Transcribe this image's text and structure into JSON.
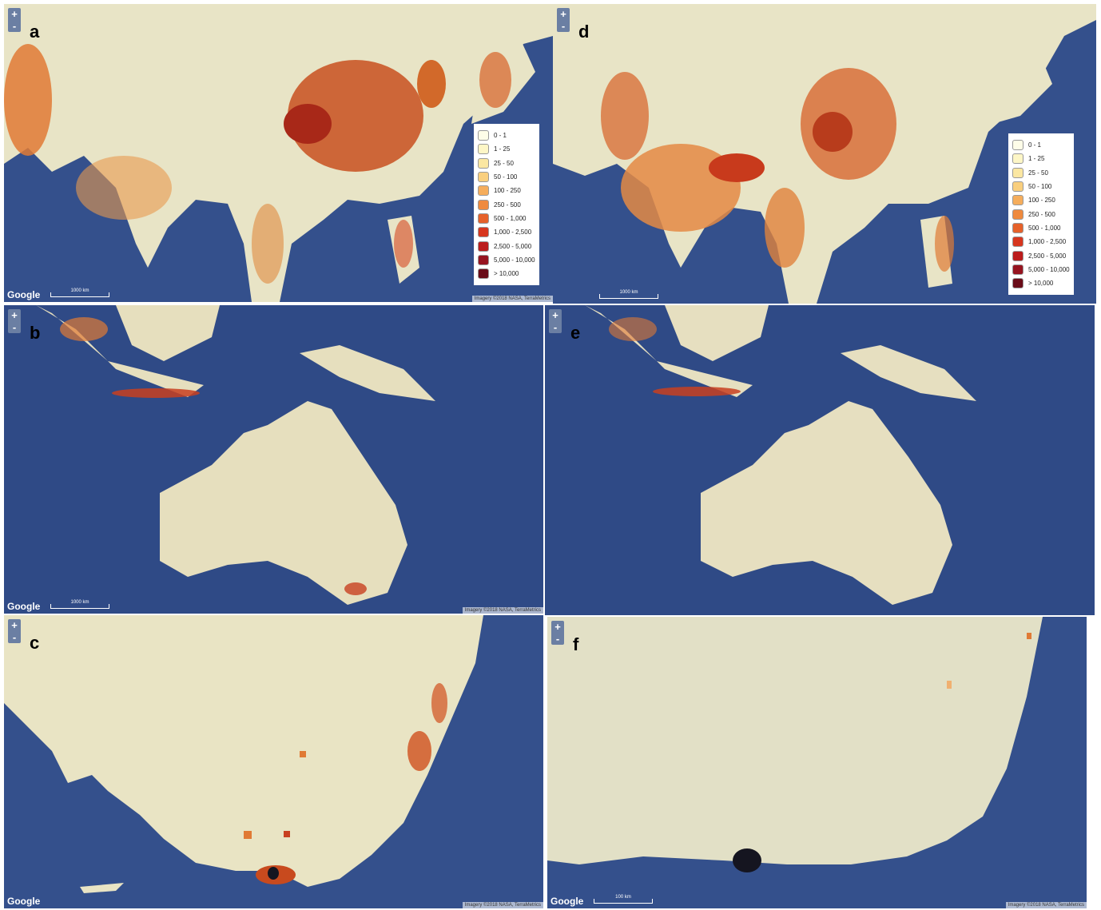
{
  "panels": [
    {
      "label": "a",
      "zoom_in": "+",
      "zoom_out": "-",
      "logo": "Google",
      "scale": "1000 km",
      "attribution": "Imagery ©2018 NASA, TerraMetrics",
      "legend": [
        {
          "label": "0 - 1",
          "color": "#fefde8"
        },
        {
          "label": "1 - 25",
          "color": "#fdf6c6"
        },
        {
          "label": "25 - 50",
          "color": "#fbe7a2"
        },
        {
          "label": "50 - 100",
          "color": "#f9cf7e"
        },
        {
          "label": "100 - 250",
          "color": "#f5ad5c"
        },
        {
          "label": "250 - 500",
          "color": "#ef8a3e"
        },
        {
          "label": "500 - 1,000",
          "color": "#e6612a"
        },
        {
          "label": "1,000 - 2,500",
          "color": "#d7361e"
        },
        {
          "label": "2,500 - 5,000",
          "color": "#bb1c1c"
        },
        {
          "label": "5,000 - 10,000",
          "color": "#961420"
        },
        {
          "label": "> 10,000",
          "color": "#6a0c18"
        }
      ]
    },
    {
      "label": "d",
      "zoom_in": "+",
      "zoom_out": "-",
      "scale": "1000 km",
      "legend": [
        {
          "label": "0 - 1",
          "color": "#fefde8"
        },
        {
          "label": "1 - 25",
          "color": "#fdf6c6"
        },
        {
          "label": "25 - 50",
          "color": "#fbe7a2"
        },
        {
          "label": "50 - 100",
          "color": "#f9cf7e"
        },
        {
          "label": "100 - 250",
          "color": "#f5ad5c"
        },
        {
          "label": "250 - 500",
          "color": "#ef8a3e"
        },
        {
          "label": "500 - 1,000",
          "color": "#e6612a"
        },
        {
          "label": "1,000 - 2,500",
          "color": "#d7361e"
        },
        {
          "label": "2,500 - 5,000",
          "color": "#bb1c1c"
        },
        {
          "label": "5,000 - 10,000",
          "color": "#961420"
        },
        {
          "label": "> 10,000",
          "color": "#6a0c18"
        }
      ]
    },
    {
      "label": "b",
      "zoom_in": "+",
      "zoom_out": "-",
      "logo": "Google",
      "scale": "1000 km",
      "attribution": "Imagery ©2018 NASA, TerraMetrics"
    },
    {
      "label": "e",
      "zoom_in": "+",
      "zoom_out": "-"
    },
    {
      "label": "c",
      "zoom_in": "+",
      "zoom_out": "-",
      "logo": "Google",
      "attribution": "Imagery ©2018 NASA, TerraMetrics"
    },
    {
      "label": "f",
      "zoom_in": "+",
      "zoom_out": "-",
      "logo": "Google",
      "scale": "100 km",
      "attribution": "Imagery ©2018 NASA, TerraMetrics"
    }
  ]
}
